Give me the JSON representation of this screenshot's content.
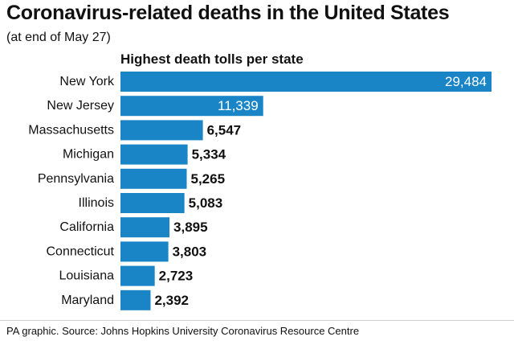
{
  "title": "Coronavirus-related deaths in the United States",
  "subtitle": "(at end of May 27)",
  "source": "PA graphic. Source: Johns Hopkins University Coronavirus Resource Centre",
  "colors": {
    "bar": "#1a85c6",
    "label_dark": "#111111",
    "label_inside": "#ffffff"
  },
  "chart_data": {
    "type": "bar",
    "orientation": "horizontal",
    "title": "Highest death tolls per state",
    "categories": [
      "New York",
      "New Jersey",
      "Massachusetts",
      "Michigan",
      "Pennsylvania",
      "Illinois",
      "California",
      "Connecticut",
      "Louisiana",
      "Maryland"
    ],
    "values": [
      29484,
      11339,
      6547,
      5334,
      5265,
      5083,
      3895,
      3803,
      2723,
      2392
    ],
    "value_labels": [
      "29,484",
      "11,339",
      "6,547",
      "5,334",
      "5,265",
      "5,083",
      "3,895",
      "3,803",
      "2,723",
      "2,392"
    ],
    "xlim": [
      0,
      29484
    ],
    "grid": false,
    "legend": "none"
  }
}
